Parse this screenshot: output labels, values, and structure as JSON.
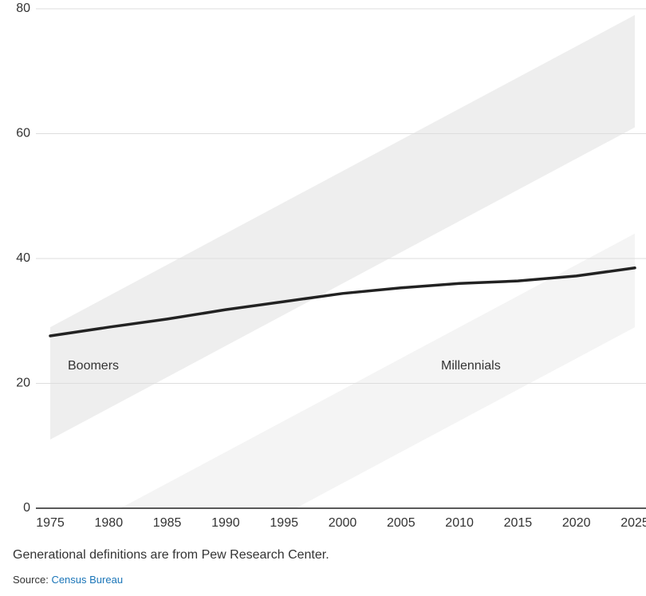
{
  "chart_data": {
    "type": "line",
    "x": [
      1975,
      1980,
      1985,
      1990,
      1995,
      2000,
      2005,
      2010,
      2015,
      2020,
      2025
    ],
    "series": [
      {
        "color": "#222222",
        "values": [
          27.6,
          29.0,
          30.3,
          31.8,
          33.1,
          34.4,
          35.3,
          36.0,
          36.4,
          37.2,
          38.5
        ]
      }
    ],
    "bands": [
      {
        "name": "Boomers",
        "color": "#eeeeee",
        "x": [
          1975,
          2025
        ],
        "lower": [
          11,
          61
        ],
        "upper": [
          29,
          79
        ]
      },
      {
        "name": "Millennials",
        "color": "#f4f4f4",
        "x": [
          1981,
          1996,
          2025
        ],
        "lower": [
          0,
          0,
          29
        ],
        "upper": [
          0,
          15,
          44
        ]
      }
    ],
    "xlim": [
      1975,
      2025
    ],
    "ylim": [
      0,
      80
    ],
    "xticks": [
      1975,
      1980,
      1985,
      1990,
      1995,
      2000,
      2005,
      2010,
      2015,
      2020,
      2025
    ],
    "yticks": [
      0,
      20,
      40,
      60,
      80
    ],
    "grid": true,
    "note": "Generational definitions are from Pew Research Center.",
    "source": {
      "label": "Source:",
      "link": "Census Bureau"
    }
  }
}
